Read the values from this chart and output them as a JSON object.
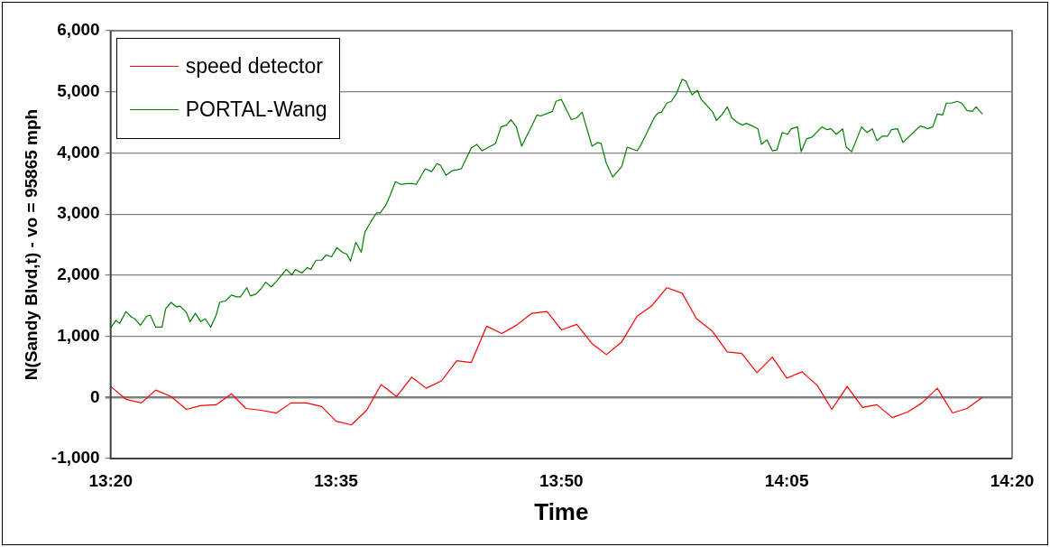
{
  "chart_data": {
    "type": "line",
    "xlabel": "Time",
    "ylabel": "N(Sandy Blvd,t) - vo = 95865 mph",
    "xlim": [
      13.333,
      14.333
    ],
    "xticks": [
      {
        "value": 13.333,
        "label": "13:20"
      },
      {
        "value": 13.583,
        "label": "13:35"
      },
      {
        "value": 13.833,
        "label": "13:50"
      },
      {
        "value": 14.083,
        "label": "14:05"
      },
      {
        "value": 14.333,
        "label": "14:20"
      }
    ],
    "ylim": [
      -1000,
      6000
    ],
    "yticks": [
      {
        "value": -1000,
        "label": "-1,000"
      },
      {
        "value": 0,
        "label": "0"
      },
      {
        "value": 1000,
        "label": "1,000"
      },
      {
        "value": 2000,
        "label": "2,000"
      },
      {
        "value": 3000,
        "label": "3,000"
      },
      {
        "value": 4000,
        "label": "4,000"
      },
      {
        "value": 5000,
        "label": "5,000"
      },
      {
        "value": 6000,
        "label": "6,000"
      }
    ],
    "grid": "y",
    "legend": "top left",
    "marker": "none",
    "line_style": "solid",
    "series": [
      {
        "name": "speed detector",
        "color": "#ff0000",
        "x": [
          13.333,
          13.35,
          13.367,
          13.383,
          13.4,
          13.417,
          13.433,
          13.45,
          13.467,
          13.483,
          13.5,
          13.517,
          13.533,
          13.55,
          13.567,
          13.583,
          13.6,
          13.617,
          13.633,
          13.65,
          13.667,
          13.683,
          13.7,
          13.717,
          13.733,
          13.75,
          13.767,
          13.783,
          13.8,
          13.817,
          13.833,
          13.85,
          13.867,
          13.883,
          13.9,
          13.917,
          13.933,
          13.95,
          13.967,
          13.983,
          14.0,
          14.017,
          14.033,
          14.05,
          14.067,
          14.083,
          14.1,
          14.117,
          14.133,
          14.15,
          14.167,
          14.183,
          14.2,
          14.217,
          14.233,
          14.25,
          14.267,
          14.283,
          14.3
        ],
        "values": [
          180,
          -30,
          -90,
          120,
          15,
          -195,
          -135,
          -120,
          60,
          -180,
          -210,
          -255,
          -90,
          -90,
          -150,
          -390,
          -450,
          -210,
          210,
          15,
          330,
          150,
          270,
          600,
          570,
          1165,
          1045,
          1180,
          1375,
          1405,
          1105,
          1195,
          880,
          700,
          910,
          1330,
          1495,
          1795,
          1705,
          1285,
          1090,
          745,
          720,
          405,
          660,
          315,
          420,
          195,
          -195,
          180,
          -165,
          -120,
          -330,
          -240,
          -90,
          150,
          -255,
          -180,
          0
        ]
      },
      {
        "name": "PORTAL-Wang",
        "color": "#008000",
        "x": [
          13.333,
          13.339,
          13.343,
          13.35,
          13.356,
          13.36,
          13.366,
          13.373,
          13.377,
          13.383,
          13.39,
          13.394,
          13.4,
          13.406,
          13.41,
          13.417,
          13.421,
          13.427,
          13.433,
          13.438,
          13.444,
          13.45,
          13.454,
          13.461,
          13.467,
          13.473,
          13.477,
          13.484,
          13.488,
          13.494,
          13.5,
          13.505,
          13.511,
          13.517,
          13.528,
          13.534,
          13.538,
          13.545,
          13.551,
          13.555,
          13.561,
          13.567,
          13.572,
          13.578,
          13.584,
          13.59,
          13.595,
          13.599,
          13.605,
          13.611,
          13.615,
          13.622,
          13.628,
          13.632,
          13.638,
          13.643,
          13.649,
          13.655,
          13.661,
          13.668,
          13.672,
          13.682,
          13.689,
          13.695,
          13.699,
          13.705,
          13.712,
          13.722,
          13.733,
          13.739,
          13.745,
          13.76,
          13.766,
          13.772,
          13.777,
          13.783,
          13.789,
          13.806,
          13.81,
          13.823,
          13.827,
          13.833,
          13.844,
          13.85,
          13.856,
          13.867,
          13.873,
          13.877,
          13.883,
          13.89,
          13.9,
          13.906,
          13.917,
          13.921,
          13.936,
          13.94,
          13.944,
          13.95,
          13.955,
          13.961,
          13.967,
          13.971,
          13.978,
          13.984,
          13.988,
          13.994,
          14.001,
          14.005,
          14.011,
          14.017,
          14.022,
          14.028,
          14.034,
          14.038,
          14.045,
          14.051,
          14.055,
          14.061,
          14.067,
          14.072,
          14.078,
          14.084,
          14.088,
          14.095,
          14.099,
          14.105,
          14.111,
          14.122,
          14.128,
          14.132,
          14.138,
          14.145,
          14.149,
          14.155,
          14.166,
          14.172,
          14.178,
          14.183,
          14.189,
          14.195,
          14.199,
          14.206,
          14.212,
          14.216,
          14.231,
          14.235,
          14.239,
          14.245,
          14.25,
          14.256,
          14.26,
          14.266,
          14.272,
          14.277,
          14.283,
          14.289,
          14.293,
          14.3
        ],
        "values": [
          1140,
          1260,
          1210,
          1405,
          1315,
          1285,
          1180,
          1330,
          1345,
          1150,
          1150,
          1450,
          1555,
          1480,
          1495,
          1390,
          1240,
          1375,
          1240,
          1285,
          1150,
          1345,
          1555,
          1585,
          1675,
          1645,
          1645,
          1795,
          1660,
          1690,
          1780,
          1885,
          1810,
          1900,
          2095,
          2005,
          2095,
          2035,
          2125,
          2095,
          2245,
          2245,
          2330,
          2300,
          2450,
          2375,
          2345,
          2230,
          2540,
          2375,
          2705,
          2885,
          3020,
          3020,
          3140,
          3305,
          3530,
          3485,
          3500,
          3500,
          3485,
          3740,
          3695,
          3825,
          3795,
          3635,
          3710,
          3740,
          4080,
          4140,
          4035,
          4155,
          4425,
          4455,
          4545,
          4425,
          4110,
          4620,
          4605,
          4680,
          4845,
          4875,
          4545,
          4575,
          4665,
          4110,
          4170,
          4155,
          3825,
          3605,
          3780,
          4095,
          4035,
          4125,
          4575,
          4650,
          4665,
          4815,
          4845,
          4980,
          5205,
          5175,
          4950,
          5025,
          4875,
          4785,
          4665,
          4530,
          4620,
          4755,
          4575,
          4500,
          4455,
          4485,
          4440,
          4395,
          4140,
          4215,
          4035,
          4050,
          4335,
          4305,
          4395,
          4425,
          4020,
          4230,
          4260,
          4425,
          4380,
          4395,
          4305,
          4395,
          4095,
          4020,
          4425,
          4335,
          4395,
          4200,
          4275,
          4275,
          4380,
          4395,
          4170,
          4230,
          4440,
          4425,
          4395,
          4425,
          4635,
          4620,
          4815,
          4815,
          4845,
          4815,
          4695,
          4680,
          4755,
          4635
        ]
      }
    ]
  }
}
